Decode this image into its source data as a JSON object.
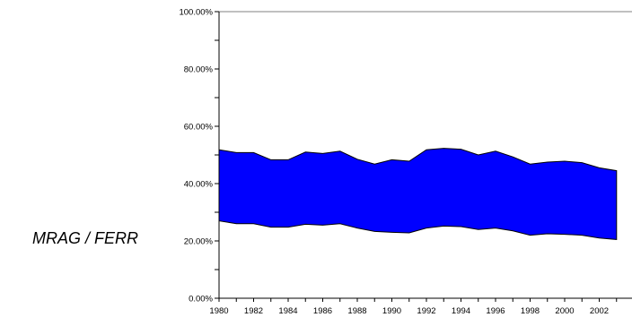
{
  "chart_data": {
    "type": "area",
    "title": "",
    "xlabel": "",
    "ylabel": "",
    "side_label": "MRAG / FERR",
    "x": [
      1980,
      1981,
      1982,
      1983,
      1984,
      1985,
      1986,
      1987,
      1988,
      1989,
      1990,
      1991,
      1992,
      1993,
      1994,
      1995,
      1996,
      1997,
      1998,
      1999,
      2000,
      2001,
      2002,
      2003
    ],
    "series": [
      {
        "lower": [
          27.0,
          26.0,
          26.0,
          24.8,
          24.8,
          25.8,
          25.5,
          26.0,
          24.5,
          23.3,
          23.0,
          22.8,
          24.5,
          25.2,
          25.0,
          24.0,
          24.5,
          23.5,
          22.0,
          22.5,
          22.3,
          22.0,
          21.0,
          20.5
        ],
        "upper": [
          51.8,
          50.8,
          50.8,
          48.3,
          48.3,
          51.0,
          50.5,
          51.3,
          48.5,
          46.8,
          48.3,
          47.8,
          51.8,
          52.3,
          52.0,
          50.0,
          51.3,
          49.3,
          46.8,
          47.5,
          47.8,
          47.3,
          45.5,
          44.5
        ],
        "color": "#0000ff"
      }
    ],
    "ylim": [
      0,
      100
    ],
    "y_ticks": [
      "0.00%",
      "20.00%",
      "40.00%",
      "60.00%",
      "80.00%",
      "100.00%"
    ],
    "x_ticks": [
      "1980",
      "1982",
      "1984",
      "1986",
      "1988",
      "1990",
      "1992",
      "1994",
      "1996",
      "1998",
      "2000",
      "2002"
    ],
    "x_tick_values": [
      1980,
      1982,
      1984,
      1986,
      1988,
      1990,
      1992,
      1994,
      1996,
      1998,
      2000,
      2002
    ],
    "grid": false,
    "frame_color": "#808080"
  }
}
